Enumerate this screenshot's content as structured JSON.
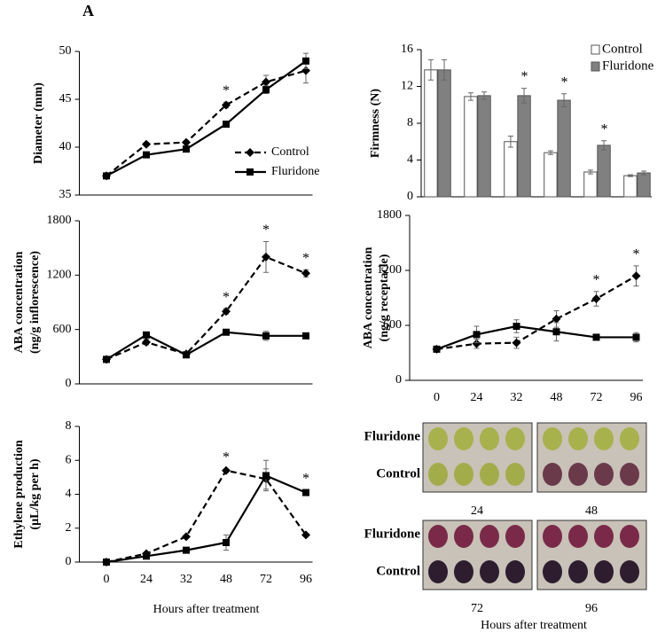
{
  "figure_label": "A",
  "chart_data": [
    {
      "type": "line",
      "ylabel": [
        "Diameter (mm)"
      ],
      "categories": [
        null,
        null,
        null,
        null,
        null,
        null
      ],
      "ylim": [
        35,
        50
      ],
      "yticks": [
        35,
        40,
        45,
        50
      ],
      "legend": "lower-right",
      "series": [
        {
          "name": "Control",
          "color": "#000000",
          "line_style": "dashed",
          "marker": "diamond",
          "values": [
            37,
            40.3,
            40.5,
            44.4,
            46.8,
            48
          ],
          "errors": [
            0.2,
            0.2,
            0.2,
            0.3,
            0.7,
            1.3
          ]
        },
        {
          "name": "Fluridone",
          "color": "#000000",
          "line_style": "solid",
          "marker": "square",
          "values": [
            37,
            39.2,
            39.8,
            42.4,
            46,
            49
          ],
          "errors": [
            0.2,
            0.2,
            0.2,
            0.2,
            0.4,
            0.8
          ]
        }
      ],
      "significance": [
        null,
        null,
        null,
        "*",
        null,
        null
      ]
    },
    {
      "type": "bar",
      "ylabel": [
        "Firmness (N)"
      ],
      "categories": [
        null,
        null,
        null,
        null,
        null,
        null
      ],
      "ylim": [
        0,
        16
      ],
      "yticks": [
        0,
        4,
        8,
        12,
        16
      ],
      "legend": "upper-right",
      "series": [
        {
          "name": "Control",
          "color": "#ffffff",
          "values": [
            13.8,
            10.9,
            6,
            4.8,
            2.7,
            2.3
          ],
          "errors": [
            1.1,
            0.4,
            0.6,
            0.2,
            0.2,
            0.1
          ]
        },
        {
          "name": "Fluridone",
          "color": "#808080",
          "values": [
            13.8,
            11,
            11,
            10.5,
            5.6,
            2.6
          ],
          "errors": [
            1.1,
            0.4,
            0.8,
            0.7,
            0.5,
            0.2
          ]
        }
      ],
      "significance": [
        null,
        null,
        "*",
        "*",
        "*",
        null
      ]
    },
    {
      "type": "line",
      "ylabel": [
        "ABA concentration",
        "(ng/g inflorescence)"
      ],
      "categories": [
        null,
        null,
        null,
        null,
        null,
        null
      ],
      "ylim": [
        0,
        1800
      ],
      "yticks": [
        0,
        600,
        1200,
        1800
      ],
      "series": [
        {
          "color": "#000000",
          "line_style": "dashed",
          "marker": "diamond",
          "values": [
            270,
            460,
            330,
            800,
            1400,
            1220
          ],
          "errors": [
            20,
            30,
            20,
            30,
            170,
            40
          ]
        },
        {
          "color": "#000000",
          "line_style": "solid",
          "marker": "square",
          "values": [
            270,
            540,
            320,
            570,
            530,
            530
          ],
          "errors": [
            20,
            30,
            20,
            20,
            50,
            20
          ]
        }
      ],
      "significance": [
        null,
        null,
        null,
        "*",
        "*",
        "*"
      ]
    },
    {
      "type": "line",
      "ylabel": [
        "ABA concentration",
        "(ng/g receptacle)"
      ],
      "categories": [
        0,
        24,
        32,
        48,
        72,
        96
      ],
      "ylim": [
        0,
        1800
      ],
      "yticks": [
        0,
        600,
        1200,
        1800
      ],
      "series": [
        {
          "color": "#000000",
          "line_style": "dashed",
          "marker": "diamond",
          "values": [
            340,
            400,
            410,
            670,
            890,
            1140
          ],
          "errors": [
            20,
            50,
            60,
            90,
            80,
            110
          ]
        },
        {
          "color": "#000000",
          "line_style": "solid",
          "marker": "square",
          "values": [
            340,
            500,
            590,
            530,
            470,
            470
          ],
          "errors": [
            20,
            90,
            70,
            100,
            30,
            50
          ]
        }
      ],
      "significance": [
        null,
        null,
        null,
        null,
        "*",
        "*"
      ]
    },
    {
      "type": "line",
      "ylabel": [
        "Ethylene production",
        "(µL/kg per h)"
      ],
      "xlabel": "Hours after treatment",
      "categories": [
        0,
        24,
        32,
        48,
        72,
        96
      ],
      "ylim": [
        0,
        8
      ],
      "yticks": [
        0,
        2,
        4,
        6,
        8
      ],
      "series": [
        {
          "color": "#000000",
          "line_style": "dashed",
          "marker": "diamond",
          "values": [
            0,
            0.5,
            1.5,
            5.4,
            4.9,
            1.6
          ],
          "errors": [
            0.02,
            0.05,
            0.05,
            0.1,
            0.6,
            0.1
          ]
        },
        {
          "color": "#000000",
          "line_style": "solid",
          "marker": "square",
          "values": [
            0,
            0.35,
            0.7,
            1.15,
            5.1,
            4.1
          ],
          "errors": [
            0.02,
            0.05,
            0.05,
            0.45,
            0.9,
            0.15
          ]
        }
      ],
      "significance": [
        null,
        null,
        null,
        "*",
        null,
        "*"
      ]
    }
  ],
  "photo_panel": {
    "groups": [
      {
        "row_labels": [
          "Fluridone",
          "Control"
        ],
        "days": [
          24,
          48
        ]
      },
      {
        "row_labels": [
          "Fluridone",
          "Control"
        ],
        "days": [
          72,
          96
        ]
      }
    ],
    "xlabel": "Hours after treatment"
  }
}
